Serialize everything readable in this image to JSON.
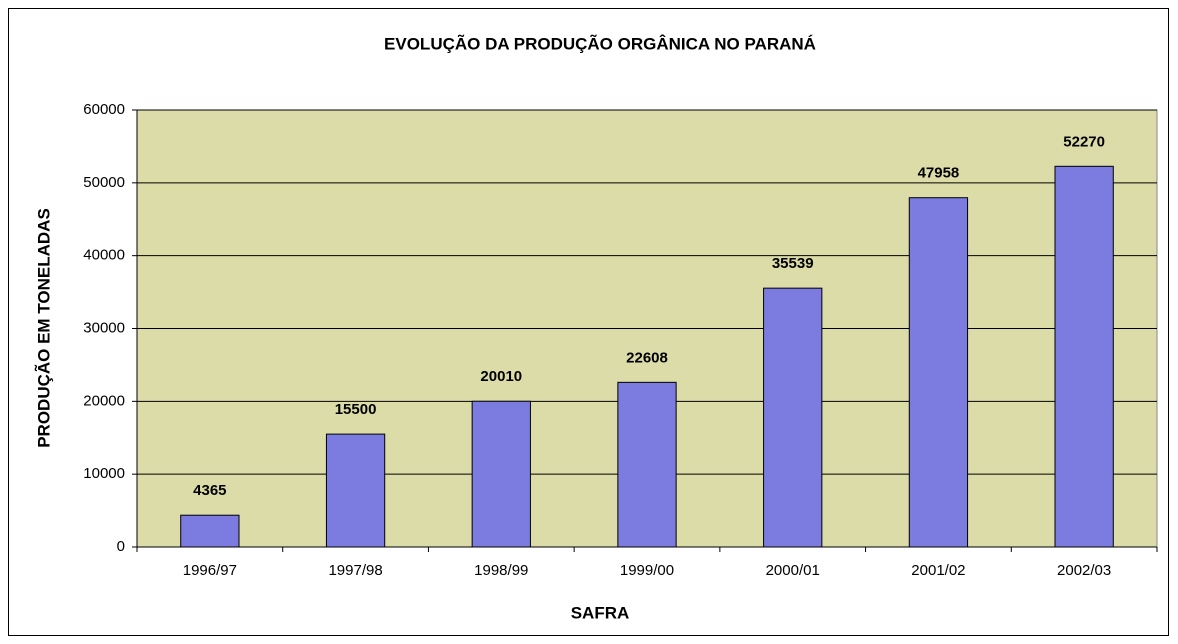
{
  "chart_data": {
    "type": "bar",
    "title": "EVOLUÇÃO DA PRODUÇÃO ORGÂNICA NO PARANÁ",
    "x_label": "SAFRA",
    "y_label": "PRODUÇÃO EM TONELADAS",
    "categories": [
      "1996/97",
      "1997/98",
      "1998/99",
      "1999/00",
      "2000/01",
      "2001/02",
      "2002/03"
    ],
    "values": [
      4365,
      15500,
      20010,
      22608,
      35539,
      47958,
      52270
    ],
    "color": "#7b7be0",
    "ylim": [
      0,
      60000
    ],
    "yticks": [
      0,
      10000,
      20000,
      30000,
      40000,
      50000,
      60000
    ],
    "grid": true
  }
}
